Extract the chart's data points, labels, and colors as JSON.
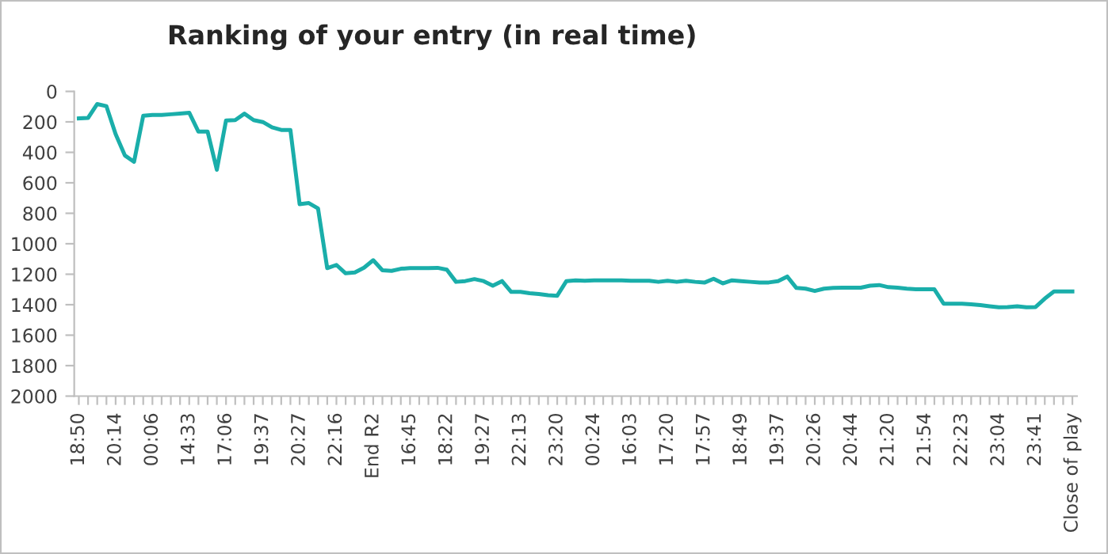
{
  "chart_data": {
    "type": "line",
    "title": "Ranking of your entry (in real time)",
    "categories": [
      "18:50",
      null,
      null,
      null,
      "20:14",
      null,
      null,
      null,
      "00:06",
      null,
      null,
      null,
      "14:33",
      null,
      null,
      null,
      "17:06",
      null,
      null,
      null,
      "19:37",
      null,
      null,
      null,
      "20:27",
      null,
      null,
      null,
      "22:16",
      null,
      null,
      null,
      "End R2",
      null,
      null,
      null,
      "16:45",
      null,
      null,
      null,
      "18:22",
      null,
      null,
      null,
      "19:27",
      null,
      null,
      null,
      "22:13",
      null,
      null,
      null,
      "23:20",
      null,
      null,
      null,
      "00:24",
      null,
      null,
      null,
      "16:03",
      null,
      null,
      null,
      "17:20",
      null,
      null,
      null,
      "17:57",
      null,
      null,
      null,
      "18:49",
      null,
      null,
      null,
      "19:37",
      null,
      null,
      null,
      "20:26",
      null,
      null,
      null,
      "20:44",
      null,
      null,
      null,
      "21:20",
      null,
      null,
      null,
      "21:54",
      null,
      null,
      null,
      "22:23",
      null,
      null,
      null,
      "23:04",
      null,
      null,
      null,
      "23:41",
      null,
      null,
      null,
      "Close of play"
    ],
    "series": [
      {
        "color": "#1aaeaa",
        "values": [
          177,
          174,
          83,
          97,
          281,
          420,
          462,
          160,
          155,
          155,
          150,
          145,
          140,
          264,
          264,
          514,
          191,
          188,
          146,
          188,
          201,
          236,
          253,
          253,
          740,
          733,
          768,
          1160,
          1139,
          1194,
          1188,
          1157,
          1108,
          1174,
          1178,
          1164,
          1160,
          1160,
          1160,
          1158,
          1170,
          1250,
          1245,
          1232,
          1245,
          1275,
          1245,
          1316,
          1316,
          1325,
          1330,
          1338,
          1341,
          1245,
          1240,
          1243,
          1240,
          1240,
          1240,
          1240,
          1243,
          1243,
          1243,
          1250,
          1243,
          1250,
          1243,
          1250,
          1255,
          1230,
          1260,
          1240,
          1245,
          1250,
          1254,
          1254,
          1245,
          1215,
          1290,
          1295,
          1310,
          1295,
          1290,
          1288,
          1288,
          1288,
          1275,
          1271,
          1285,
          1288,
          1295,
          1299,
          1299,
          1299,
          1393,
          1393,
          1393,
          1398,
          1403,
          1410,
          1417,
          1415,
          1410,
          1417,
          1415,
          1360,
          1313,
          1313,
          1313
        ]
      }
    ],
    "ylim": [
      2000,
      0
    ],
    "yticks": [
      0,
      200,
      400,
      600,
      800,
      1000,
      1200,
      1400,
      1600,
      1800,
      2000
    ],
    "grid": false,
    "legend": false,
    "marker": "none",
    "line_style": "solid"
  }
}
